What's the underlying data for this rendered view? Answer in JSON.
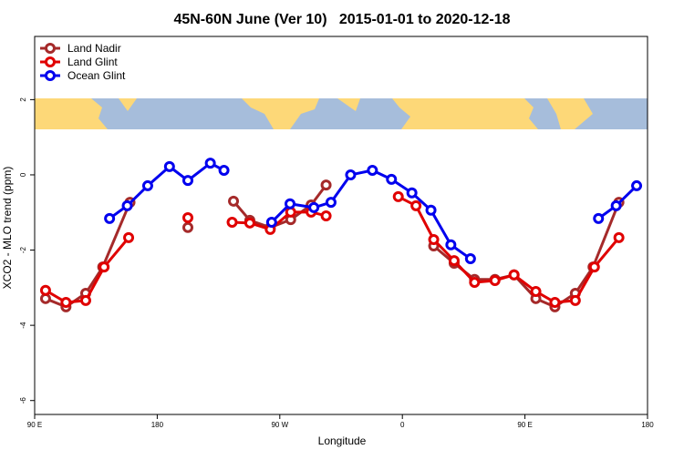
{
  "chart_data": {
    "type": "line",
    "title": "45N-60N June (Ver 10)   2015-01-01 to 2020-12-18",
    "xlabel": "Longitude",
    "ylabel": "XCO2 - MLO trend (ppm)",
    "xlim": [
      90,
      540
    ],
    "ylim": [
      -6.37,
      3.68
    ],
    "xticks": [
      {
        "value": 90,
        "label": "90 E"
      },
      180,
      {
        "value": 270,
        "label": "90 W"
      },
      {
        "value": 360,
        "label": "0"
      },
      {
        "value": 450,
        "label": "90 E"
      },
      {
        "value": 540,
        "label": "180"
      }
    ],
    "yticks": [
      -6,
      -4,
      -2,
      0,
      2
    ],
    "legend": "top-left",
    "series": [
      {
        "name": "Land Nadir",
        "color": "#a52a2a",
        "x": [
          98,
          113,
          127.5,
          140,
          160,
          null,
          202.5,
          null,
          236,
          248,
          263,
          278,
          293,
          304,
          null,
          383,
          398,
          413,
          428,
          442,
          458,
          472,
          487,
          500,
          519
        ],
        "values": [
          -3.29,
          -3.51,
          -3.15,
          -2.45,
          -0.73,
          null,
          -1.4,
          null,
          -0.7,
          -1.21,
          -1.4,
          -1.19,
          -0.8,
          -0.27,
          null,
          -1.89,
          -2.35,
          -2.78,
          -2.78,
          -2.66,
          -3.29,
          -3.51,
          -3.15,
          -2.45,
          -0.73
        ]
      },
      {
        "name": "Land Glint",
        "color": "#e00000",
        "x": [
          98,
          113,
          127.5,
          141,
          159,
          null,
          202.5,
          null,
          235,
          248,
          263,
          278,
          293,
          304,
          null,
          357,
          370,
          383,
          398,
          413,
          428,
          442,
          458,
          472,
          487,
          501,
          519
        ],
        "values": [
          -3.07,
          -3.39,
          -3.34,
          -2.45,
          -1.67,
          null,
          -1.14,
          null,
          -1.26,
          -1.28,
          -1.45,
          -0.99,
          -0.99,
          -1.09,
          null,
          -0.58,
          -0.82,
          -1.72,
          -2.28,
          -2.86,
          -2.81,
          -2.66,
          -3.1,
          -3.39,
          -3.34,
          -2.45,
          -1.67
        ]
      },
      {
        "name": "Ocean Glint",
        "color": "#0000ee",
        "x": [
          145,
          158,
          173,
          189,
          202.5,
          219,
          229,
          null,
          264,
          277.5,
          295,
          307.6,
          322,
          338,
          352,
          367,
          381,
          395.6,
          410,
          null,
          504,
          517,
          532
        ],
        "values": [
          -1.16,
          -0.82,
          -0.29,
          0.22,
          -0.15,
          0.31,
          0.12,
          null,
          -1.26,
          -0.77,
          -0.87,
          -0.73,
          0,
          0.12,
          -0.12,
          -0.48,
          -0.94,
          -1.86,
          -2.23,
          null,
          -1.16,
          -0.82,
          -0.29
        ]
      }
    ]
  }
}
